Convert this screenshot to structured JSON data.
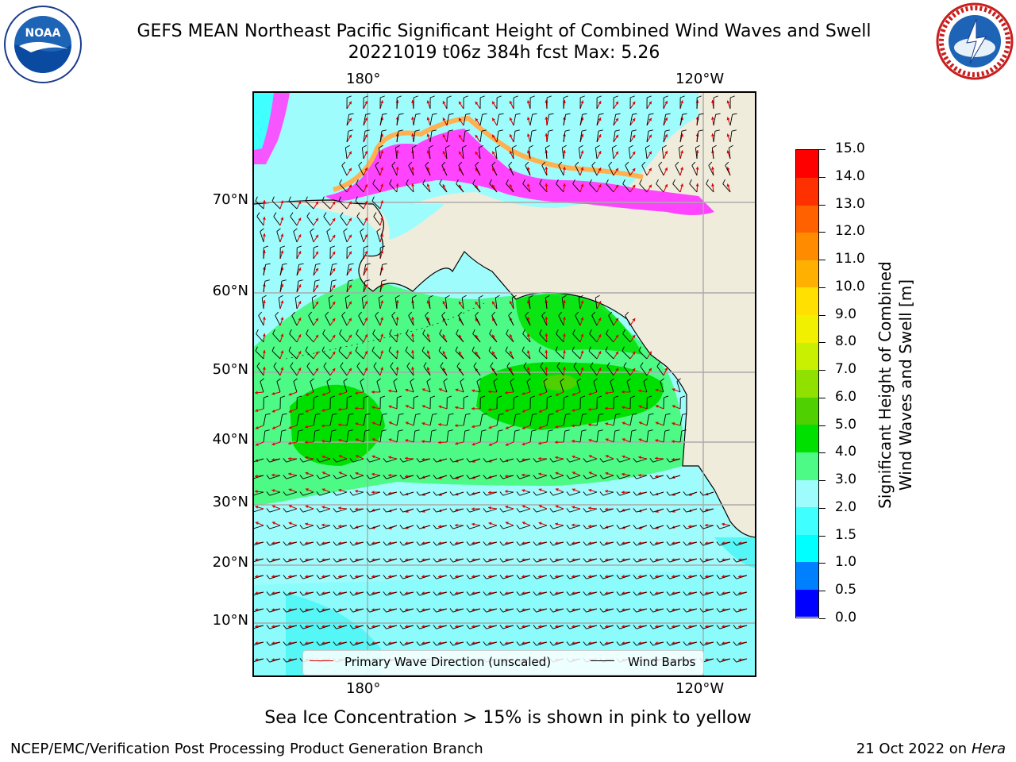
{
  "header": {
    "title_line1": "GEFS MEAN Northeast Pacific Significant Height of Combined Wind Waves and Swell",
    "title_line2": "20221019 t06z 384h fcst   Max: 5.26"
  },
  "logos": {
    "left": {
      "icon": "noaa-logo-icon",
      "text": "NOAA"
    },
    "right": {
      "icon": "national-weather-service-logo-icon",
      "text": "NATIONAL WEATHER SERVICE"
    }
  },
  "map": {
    "lon_labels_top": [
      "180°",
      "120°W"
    ],
    "lon_labels_bottom": [
      "180°",
      "120°W"
    ],
    "lat_labels": [
      "70°N",
      "60°N",
      "50°N",
      "40°N",
      "30°N",
      "20°N",
      "10°N"
    ],
    "colors": {
      "land": "#efecdc",
      "ocean_low": "#9ffcfc",
      "green_light": "#4dfa86",
      "green": "#00e000",
      "ice_pink": "#ff44ff",
      "ice_orange": "#ffb050",
      "arrow": "#e00000",
      "barb": "#000000"
    }
  },
  "legend": {
    "wave_direction": "Primary Wave Direction (unscaled)",
    "wind_barbs": "Wind Barbs",
    "wave_color": "#e00000",
    "barb_color": "#000000"
  },
  "colorbar": {
    "title_line1": "Significant Height of Combined",
    "title_line2": "Wind Waves and Swell [m]",
    "ticks": [
      "0.0",
      "0.5",
      "1.0",
      "1.5",
      "2.0",
      "3.0",
      "4.0",
      "5.0",
      "6.0",
      "7.0",
      "8.0",
      "9.0",
      "10.0",
      "11.0",
      "12.0",
      "13.0",
      "14.0",
      "15.0"
    ],
    "colors": [
      "#0000ff",
      "#0080ff",
      "#00ffff",
      "#40ffff",
      "#9ffcfc",
      "#4dfa86",
      "#00e000",
      "#4fd000",
      "#90e000",
      "#c8f000",
      "#f0f000",
      "#ffe000",
      "#ffb000",
      "#ff8c00",
      "#ff6000",
      "#ff3000",
      "#ff0000"
    ]
  },
  "sea_ice_note": "Sea Ice Concentration > 15% is shown in pink to yellow",
  "footer": {
    "left": "NCEP/EMC/Verification Post Processing Product Generation Branch",
    "right_date": "21 Oct 2022 on ",
    "right_host": "Hera"
  }
}
